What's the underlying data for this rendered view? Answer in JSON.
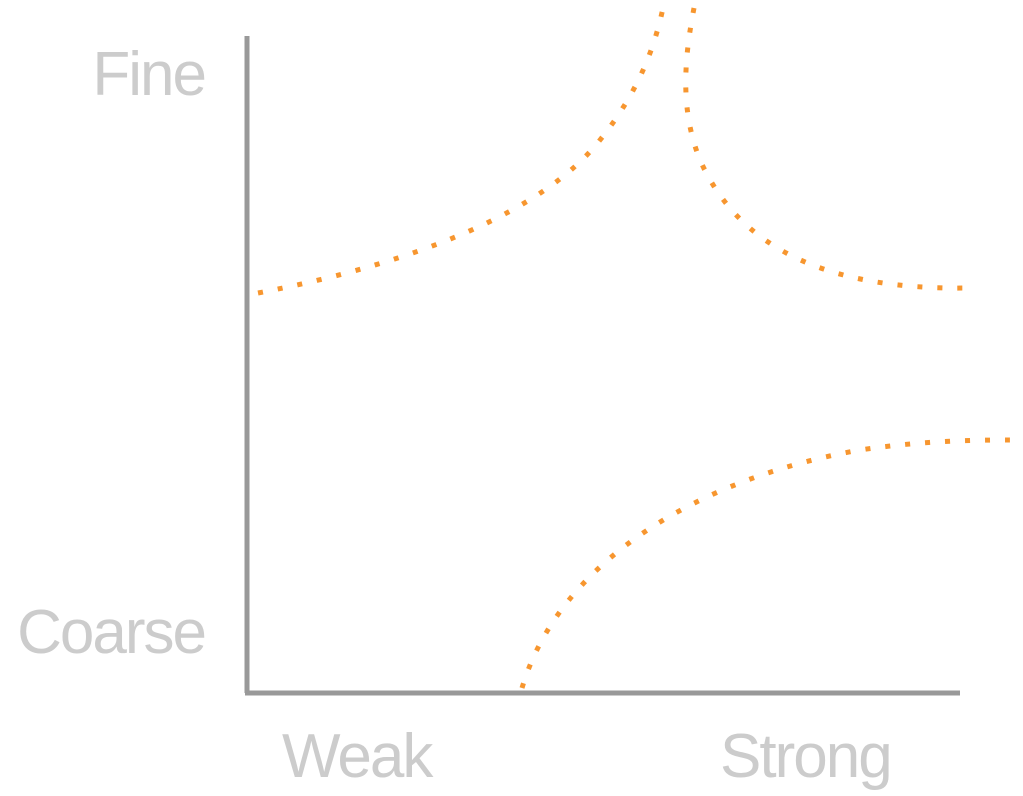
{
  "labels": {
    "y_top": "Fine",
    "y_bottom": "Coarse",
    "x_left": "Weak",
    "x_right": "Strong"
  },
  "colors": {
    "axis": "#999999",
    "label": "#cccccc",
    "curve": "#f7962f"
  },
  "curves": [
    {
      "name": "upper-left-curve",
      "description_shape": "rising-to-top"
    },
    {
      "name": "upper-right-curve",
      "description_shape": "falling-from-top"
    },
    {
      "name": "lower-right-curve",
      "description_shape": "rising-from-bottom"
    }
  ]
}
